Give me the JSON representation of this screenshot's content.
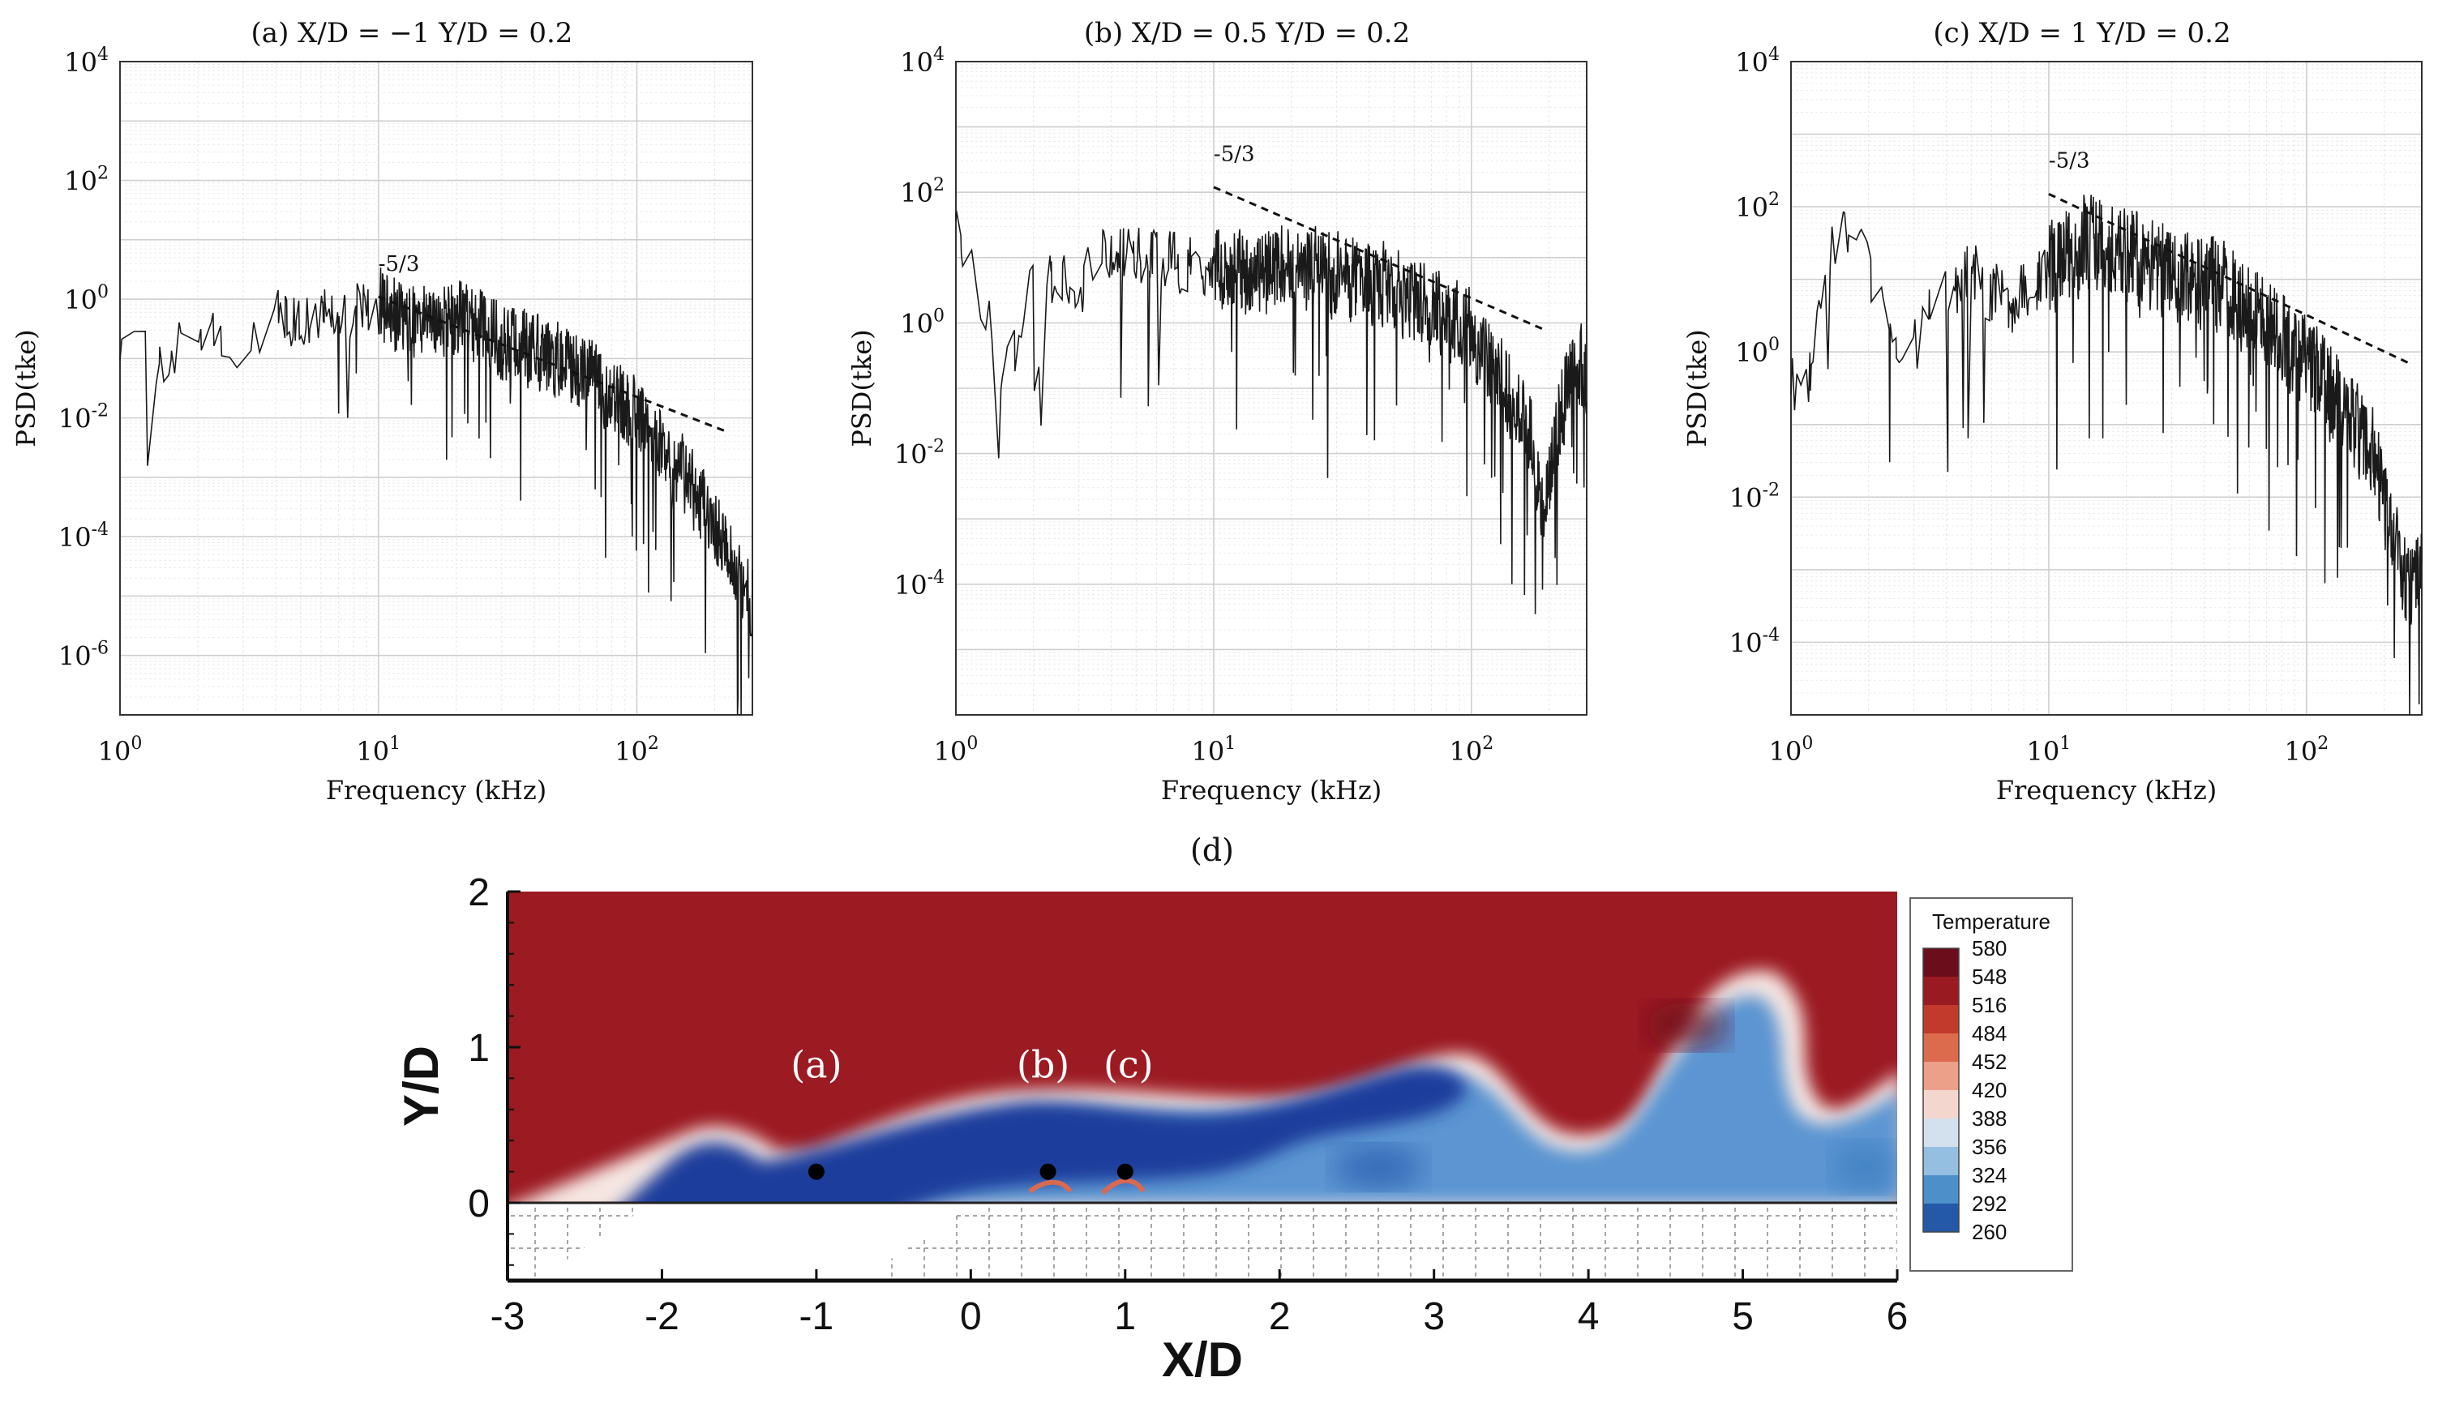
{
  "chart_data": [
    {
      "type": "line",
      "panel": "a",
      "title": "(a) X/D = −1  Y/D = 0.2",
      "xlabel": "Frequency (kHz)",
      "ylabel": "PSD(tke)",
      "x_scale": "log",
      "y_scale": "log",
      "xlim": [
        1,
        280
      ],
      "ylim": [
        1e-07,
        10000.0
      ],
      "x_ticks": [
        1,
        10,
        100
      ],
      "x_tick_labels": [
        {
          "base": "10",
          "exp": "0"
        },
        {
          "base": "10",
          "exp": "1"
        },
        {
          "base": "10",
          "exp": "2"
        }
      ],
      "y_ticks": [
        1e-06,
        0.0001,
        0.01,
        1,
        100,
        10000
      ],
      "y_tick_labels": [
        {
          "base": "10",
          "exp": "-6"
        },
        {
          "base": "10",
          "exp": "-4"
        },
        {
          "base": "10",
          "exp": "-2"
        },
        {
          "base": "10",
          "exp": "0"
        },
        {
          "base": "10",
          "exp": "2"
        },
        {
          "base": "10",
          "exp": "4"
        }
      ],
      "grid": true,
      "series": [
        {
          "color": "#1a1a1a",
          "envelope": [
            [
              1,
              0.15
            ],
            [
              1.2,
              0.25
            ],
            [
              1.5,
              0.1
            ],
            [
              2,
              0.4
            ],
            [
              3,
              0.12
            ],
            [
              4,
              0.8
            ],
            [
              5,
              0.4
            ],
            [
              7,
              0.8
            ],
            [
              10,
              0.9
            ],
            [
              14,
              0.5
            ],
            [
              20,
              0.6
            ],
            [
              30,
              0.25
            ],
            [
              50,
              0.12
            ],
            [
              70,
              0.05
            ],
            [
              100,
              0.012
            ],
            [
              140,
              0.002
            ],
            [
              180,
              0.0004
            ],
            [
              220,
              8e-05
            ],
            [
              260,
              2e-05
            ],
            [
              280,
              1e-05
            ]
          ]
        },
        {
          "name": "-5/3",
          "color": "#1a1a1a",
          "style": "dashed",
          "points": [
            [
              10,
              1.1
            ],
            [
              220,
              0.006
            ]
          ]
        }
      ],
      "annotations": [
        {
          "text": "-5/3",
          "x": 10,
          "y": 3
        }
      ]
    },
    {
      "type": "line",
      "panel": "b",
      "title": "(b) X/D = 0.5  Y/D = 0.2",
      "xlabel": "Frequency (kHz)",
      "ylabel": "PSD(tke)",
      "x_scale": "log",
      "y_scale": "log",
      "xlim": [
        1,
        280
      ],
      "ylim": [
        1e-06,
        10000.0
      ],
      "x_ticks": [
        1,
        10,
        100
      ],
      "x_tick_labels": [
        {
          "base": "10",
          "exp": "0"
        },
        {
          "base": "10",
          "exp": "1"
        },
        {
          "base": "10",
          "exp": "2"
        }
      ],
      "y_ticks": [
        0.0001,
        0.01,
        1,
        100,
        10000
      ],
      "y_tick_labels": [
        {
          "base": "10",
          "exp": "-4"
        },
        {
          "base": "10",
          "exp": "-2"
        },
        {
          "base": "10",
          "exp": "0"
        },
        {
          "base": "10",
          "exp": "2"
        },
        {
          "base": "10",
          "exp": "4"
        }
      ],
      "grid": true,
      "series": [
        {
          "color": "#1a1a1a",
          "envelope": [
            [
              1,
              20
            ],
            [
              1.3,
              2
            ],
            [
              1.6,
              0.15
            ],
            [
              2,
              5
            ],
            [
              3,
              4
            ],
            [
              4,
              15
            ],
            [
              6,
              10
            ],
            [
              10,
              8
            ],
            [
              15,
              6
            ],
            [
              20,
              9
            ],
            [
              30,
              6
            ],
            [
              50,
              4
            ],
            [
              70,
              2
            ],
            [
              100,
              0.8
            ],
            [
              140,
              0.1
            ],
            [
              170,
              0.02
            ],
            [
              190,
              0.001
            ],
            [
              210,
              0.02
            ],
            [
              250,
              0.3
            ],
            [
              280,
              0.2
            ]
          ]
        },
        {
          "name": "-5/3",
          "color": "#1a1a1a",
          "style": "dashed",
          "points": [
            [
              10,
              120
            ],
            [
              190,
              0.8
            ]
          ]
        }
      ],
      "annotations": [
        {
          "text": "-5/3",
          "x": 10,
          "y": 300
        }
      ]
    },
    {
      "type": "line",
      "panel": "c",
      "title": "(c) X/D = 1  Y/D = 0.2",
      "xlabel": "Frequency (kHz)",
      "ylabel": "PSD(tke)",
      "x_scale": "log",
      "y_scale": "log",
      "xlim": [
        1,
        280
      ],
      "ylim": [
        1e-05,
        10000.0
      ],
      "x_ticks": [
        1,
        10,
        100
      ],
      "x_tick_labels": [
        {
          "base": "10",
          "exp": "0"
        },
        {
          "base": "10",
          "exp": "1"
        },
        {
          "base": "10",
          "exp": "2"
        }
      ],
      "y_ticks": [
        0.0001,
        0.01,
        1,
        100,
        10000
      ],
      "y_tick_labels": [
        {
          "base": "10",
          "exp": "-4"
        },
        {
          "base": "10",
          "exp": "-2"
        },
        {
          "base": "10",
          "exp": "0"
        },
        {
          "base": "10",
          "exp": "2"
        },
        {
          "base": "10",
          "exp": "4"
        }
      ],
      "grid": true,
      "series": [
        {
          "color": "#1a1a1a",
          "envelope": [
            [
              1,
              0.4
            ],
            [
              1.1,
              0.15
            ],
            [
              1.4,
              30
            ],
            [
              1.8,
              50
            ],
            [
              2.3,
              3
            ],
            [
              2.8,
              0.5
            ],
            [
              3.5,
              5
            ],
            [
              5,
              15
            ],
            [
              7,
              5
            ],
            [
              10,
              15
            ],
            [
              14,
              40
            ],
            [
              20,
              25
            ],
            [
              30,
              15
            ],
            [
              50,
              8
            ],
            [
              70,
              3
            ],
            [
              100,
              0.8
            ],
            [
              140,
              0.2
            ],
            [
              180,
              0.05
            ],
            [
              220,
              0.003
            ],
            [
              250,
              0.0005
            ],
            [
              280,
              0.002
            ]
          ]
        },
        {
          "name": "-5/3",
          "color": "#1a1a1a",
          "style": "dashed",
          "points": [
            [
              10,
              150
            ],
            [
              250,
              0.7
            ]
          ]
        }
      ],
      "annotations": [
        {
          "text": "-5/3",
          "x": 10,
          "y": 350
        }
      ]
    },
    {
      "type": "heatmap",
      "panel": "d",
      "title": "(d)",
      "xlabel": "X/D",
      "ylabel": "Y/D",
      "xlim": [
        -3,
        6
      ],
      "ylim": [
        -0.5,
        2
      ],
      "x_ticks": [
        "-3",
        "-2",
        "-1",
        "0",
        "1",
        "2",
        "3",
        "4",
        "5",
        "6"
      ],
      "y_ticks": [
        "0",
        "1",
        "2"
      ],
      "legend": {
        "title": "Temperature",
        "placement": "right",
        "levels": [
          "580",
          "548",
          "516",
          "484",
          "452",
          "420",
          "388",
          "356",
          "324",
          "292",
          "260"
        ],
        "colors": [
          "#6b0d1a",
          "#9a1a22",
          "#c23a2c",
          "#dc6b4e",
          "#eca08a",
          "#f3d7cf",
          "#d3e1ef",
          "#95bfe0",
          "#4d8fc9",
          "#2359a8",
          "#1c2d7a"
        ]
      },
      "probes": [
        {
          "label": "(a)",
          "x": -1,
          "y": 0.2
        },
        {
          "label": "(b)",
          "x": 0.5,
          "y": 0.2
        },
        {
          "label": "(c)",
          "x": 1,
          "y": 0.2
        }
      ],
      "colors": {
        "hot": "#9c1a22",
        "cold": "#1f3d9c",
        "mixed": "#5b95d2"
      }
    }
  ]
}
